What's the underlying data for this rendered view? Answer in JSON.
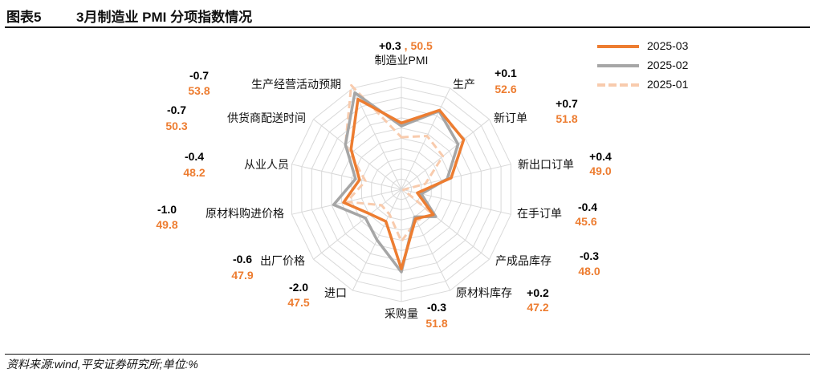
{
  "header": {
    "figure_no": "图表5",
    "title": "3月制造业 PMI 分项指数情况"
  },
  "source": "资料来源:wind,平安证券研究所;单位:%",
  "colors": {
    "s2025_03": "#ED7D31",
    "s2025_02": "#A6A6A6",
    "s2025_01": "#F8CBAD",
    "grid": "#D9D9D9",
    "delta": "#000000",
    "value": "#ED7D31"
  },
  "chart_data": {
    "type": "radar",
    "r_range": [
      44,
      55
    ],
    "categories": [
      "制造业PMI",
      "生产",
      "新订单",
      "新出口订单",
      "在手订单",
      "产成品库存",
      "原材料库存",
      "采购量",
      "进口",
      "出厂价格",
      "原材料购进价格",
      "从业人员",
      "供货商配送时间",
      "生产经营活动预期"
    ],
    "series": [
      {
        "name": "2025-03",
        "values": [
          50.5,
          52.6,
          51.8,
          49.0,
          45.6,
          48.0,
          47.2,
          51.8,
          47.5,
          47.9,
          49.8,
          48.2,
          50.3,
          53.8
        ]
      },
      {
        "name": "2025-02",
        "values": [
          50.2,
          52.5,
          51.1,
          48.6,
          46.0,
          48.3,
          47.0,
          52.1,
          49.5,
          48.5,
          50.8,
          48.6,
          51.0,
          54.5
        ]
      },
      {
        "name": "2025-01",
        "values": [
          49.1,
          49.8,
          49.2,
          46.4,
          44.2,
          47.9,
          47.4,
          49.1,
          46.7,
          46.5,
          49.5,
          47.6,
          51.0,
          55.3
        ]
      }
    ],
    "annotations": [
      {
        "delta": "+0.3",
        "value": "50.5"
      },
      {
        "delta": "+0.1",
        "value": "52.6"
      },
      {
        "delta": "+0.7",
        "value": "51.8"
      },
      {
        "delta": "+0.4",
        "value": "49.0"
      },
      {
        "delta": "-0.4",
        "value": "45.6"
      },
      {
        "delta": "-0.3",
        "value": "48.0"
      },
      {
        "delta": "+0.2",
        "value": "47.2"
      },
      {
        "delta": "-0.3",
        "value": "51.8"
      },
      {
        "delta": "-2.0",
        "value": "47.5"
      },
      {
        "delta": "-0.6",
        "value": "47.9"
      },
      {
        "delta": "-1.0",
        "value": "49.8"
      },
      {
        "delta": "-0.4",
        "value": "48.2"
      },
      {
        "delta": "-0.7",
        "value": "50.3"
      },
      {
        "delta": "-0.7",
        "value": "53.8"
      }
    ],
    "legend": [
      "2025-03",
      "2025-02",
      "2025-01"
    ],
    "legend_position": "top-right",
    "grid": true
  }
}
